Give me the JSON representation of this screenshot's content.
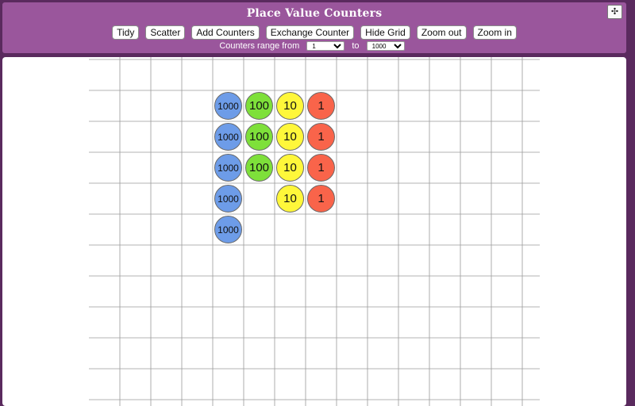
{
  "header": {
    "title": "Place Value Counters",
    "expand_icon": "move-arrows-icon"
  },
  "toolbar": {
    "buttons": [
      {
        "name": "tidy-button",
        "label": "Tidy"
      },
      {
        "name": "scatter-button",
        "label": "Scatter"
      },
      {
        "name": "add-counters-button",
        "label": "Add Counters"
      },
      {
        "name": "exchange-counter-button",
        "label": "Exchange Counter"
      },
      {
        "name": "hide-grid-button",
        "label": "Hide Grid"
      },
      {
        "name": "zoom-out-button",
        "label": "Zoom out"
      },
      {
        "name": "zoom-in-button",
        "label": "Zoom in"
      }
    ]
  },
  "range": {
    "label": "Counters range from",
    "to_label": "to",
    "from_value": "1",
    "to_value": "1000"
  },
  "colors": {
    "1000": "#6d9ce8",
    "100": "#7ee03a",
    "10": "#fff73a",
    "1": "#f9644a"
  },
  "columns": [
    {
      "value": "1000",
      "count": 5
    },
    {
      "value": "100",
      "count": 3
    },
    {
      "value": "10",
      "count": 4
    },
    {
      "value": "1",
      "count": 4
    }
  ]
}
